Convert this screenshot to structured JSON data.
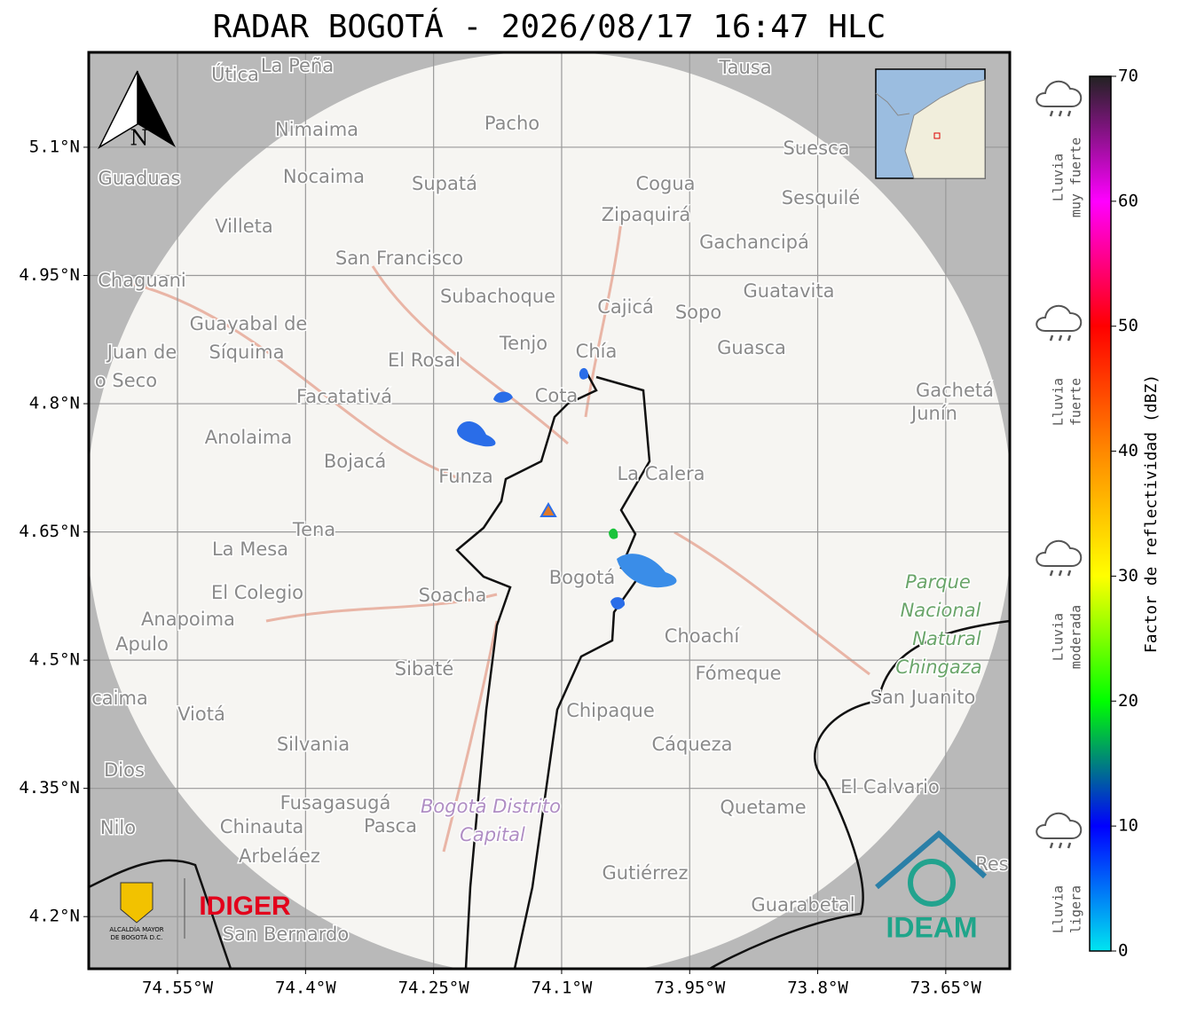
{
  "chart_data": {
    "type": "map",
    "title": "RADAR BOGOTÁ - 2026/08/17 16:47 HLC",
    "xlim": [
      -74.654,
      -73.575
    ],
    "ylim": [
      4.139,
      5.211
    ],
    "xticks": [
      {
        "value": -74.55,
        "label": "74.55°W"
      },
      {
        "value": -74.4,
        "label": "74.4°W"
      },
      {
        "value": -74.25,
        "label": "74.25°W"
      },
      {
        "value": -74.1,
        "label": "74.1°W"
      },
      {
        "value": -73.95,
        "label": "73.95°W"
      },
      {
        "value": -73.8,
        "label": "73.8°W"
      },
      {
        "value": -73.65,
        "label": "73.65°W"
      }
    ],
    "yticks": [
      {
        "value": 4.2,
        "label": "4.2°N"
      },
      {
        "value": 4.35,
        "label": "4.35°N"
      },
      {
        "value": 4.5,
        "label": "4.5°N"
      },
      {
        "value": 4.65,
        "label": "4.65°N"
      },
      {
        "value": 4.8,
        "label": "4.8°N"
      },
      {
        "value": 4.95,
        "label": "4.95°N"
      },
      {
        "value": 5.1,
        "label": "5.1°N"
      }
    ],
    "grid": true,
    "colorbar": {
      "label": "Factor de reflectividad (dBZ)",
      "lim": [
        0,
        70
      ],
      "ticks": [
        0,
        10,
        20,
        30,
        40,
        50,
        60,
        70
      ],
      "colors": [
        "#00e5f0",
        "#0000ff",
        "#00ff00",
        "#ffff00",
        "#ff8800",
        "#ff0000",
        "#ff00ff",
        "#222222"
      ]
    }
  },
  "rain_levels": [
    [
      "Lluvia",
      "muy fuerte"
    ],
    [
      "Lluvia",
      "fuerte"
    ],
    [
      "Lluvia",
      "moderada"
    ],
    [
      "Lluvia",
      "ligera"
    ]
  ],
  "north": "N",
  "logos": {
    "alcaldia_1": "ALCALDÍA MAYOR",
    "alcaldia_2": "DE BOGOTÁ D.C.",
    "idiger": "IDIGER",
    "ideam": "IDEAM"
  },
  "places": [
    "Útica",
    "La Peña",
    "Tausa",
    "Pacho",
    "Nimaima",
    "Guaduas",
    "Nocaima",
    "Supatá",
    "Cogua",
    "Suesca",
    "Sesquilé",
    "Zipaquirá",
    "Villeta",
    "Gachancipá",
    "San Francisco",
    "Chaguani",
    "Guatavita",
    "Subachoque",
    "Cajicá",
    "Sopo",
    "Guayabal de",
    "Síquima",
    "Juan de",
    "o Seco",
    "Tenjo",
    "Chía",
    "Guasca",
    "El Rosal",
    "Facatativá",
    "Cota",
    "Gachetá",
    "Junín",
    "Anolaima",
    "Bojacá",
    "Funza",
    "La Calera",
    "Tena",
    "La Mesa",
    "El Colegio",
    "Soacha",
    "Bogotá",
    "Parque",
    "Nacional",
    "Natural",
    "Chingaza",
    "Anapoima",
    "Apulo",
    "Choachí",
    "Sibaté",
    "Fómeque",
    "San Juanito",
    "caima",
    "Viotá",
    "Chipaque",
    "Silvania",
    "Cáqueza",
    "Dios",
    "El Calvario",
    "Fusagasugá",
    "Bogotá Distrito",
    "Capital",
    "Quetame",
    "Nilo",
    "Chinauta",
    "Pasca",
    "Arbeláez",
    "Gutiérrez",
    "Res",
    "Guarabetal",
    "San Bernardo"
  ]
}
